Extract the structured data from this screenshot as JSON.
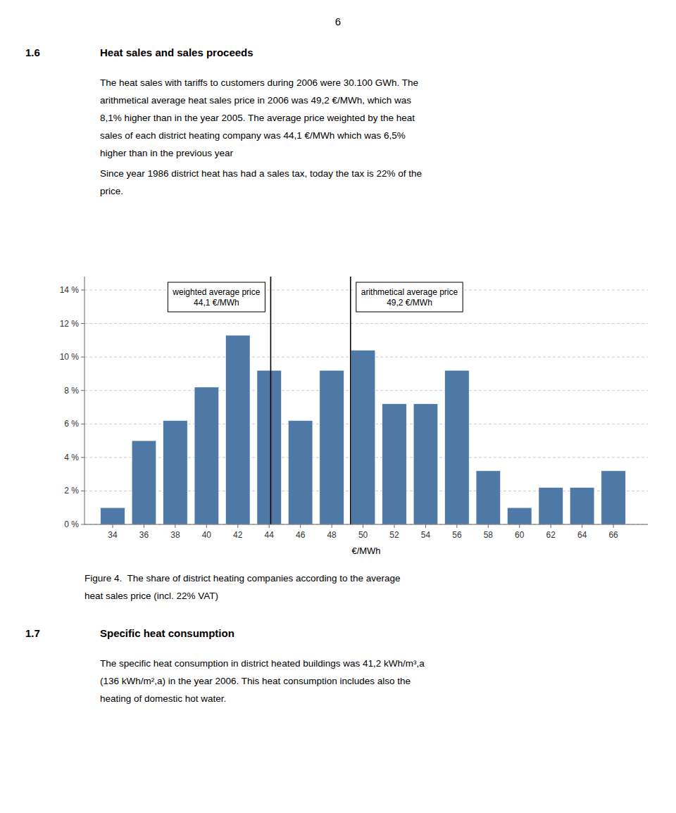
{
  "page_number": "6",
  "section_1": {
    "number": "1.6",
    "title": "Heat sales and sales proceeds",
    "paragraphs": [
      [
        "The heat sales with tariffs to customers during 2006 were 30.100 GWh. The",
        "arithmetical average heat sales price in 2006 was 49,2 €/MWh, which was",
        "8,1% higher than in the year 2005. The average price weighted by the heat",
        "sales of each district heating company was 44,1 €/MWh which was 6,5%",
        "higher than in the previous year"
      ],
      [
        "Since year 1986 district heat has had a sales tax, today the tax is 22% of the",
        "price."
      ]
    ]
  },
  "chart_data": {
    "type": "bar",
    "x": [
      34,
      36,
      38,
      40,
      42,
      44,
      46,
      48,
      50,
      52,
      54,
      56,
      58,
      60,
      62,
      64,
      66
    ],
    "values": [
      1.0,
      5.0,
      6.2,
      8.2,
      11.3,
      9.2,
      6.2,
      9.2,
      10.4,
      7.2,
      7.2,
      9.2,
      3.2,
      1.0,
      2.2,
      2.2,
      3.2
    ],
    "xlim": [
      32.2,
      68.2
    ],
    "ylim": [
      0,
      14.8
    ],
    "xticks": [
      34,
      36,
      38,
      40,
      42,
      44,
      46,
      48,
      50,
      52,
      54,
      56,
      58,
      60,
      62,
      64,
      66
    ],
    "yticks": [
      {
        "value": 0,
        "label": "0 %"
      },
      {
        "value": 2,
        "label": "2 %"
      },
      {
        "value": 4,
        "label": "4 %"
      },
      {
        "value": 6,
        "label": "6 %"
      },
      {
        "value": 8,
        "label": "8 %"
      },
      {
        "value": 10,
        "label": "10 %"
      },
      {
        "value": 12,
        "label": "12 %"
      },
      {
        "value": 14,
        "label": "14 %"
      }
    ],
    "xlabel": "€/MWh",
    "grid": true,
    "color": "#4e79a7",
    "annotations": [
      {
        "x": 44.1,
        "text": [
          "weighted average price",
          "44,1 €/MWh"
        ]
      },
      {
        "x": 49.2,
        "text": [
          "arithmetical average price",
          "49,2 €/MWh"
        ]
      }
    ]
  },
  "caption": [
    "Figure 4.  The share of district heating companies according to the average",
    "heat sales price (incl. 22% VAT)"
  ],
  "section_2": {
    "number": "1.7",
    "title": "Specific heat consumption",
    "paragraphs": [
      [
        "The specific heat consumption in district heated buildings was 41,2 kWh/m³,a",
        "(136 kWh/m²,a) in the year 2006. This heat consumption includes also the",
        "heating of domestic hot water."
      ]
    ]
  }
}
